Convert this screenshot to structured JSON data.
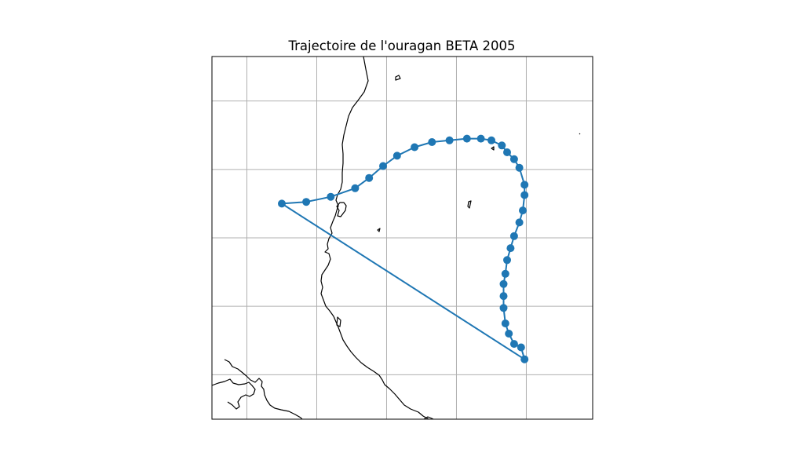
{
  "figure": {
    "title": "Trajectoire de l'ouragan BETA 2005"
  },
  "chart_data": {
    "type": "scatter",
    "title": "Trajectoire de l'ouragan BETA 2005",
    "projection": "lon/lat map with coastlines",
    "lon_range": [
      -86,
      -75.1
    ],
    "lat_range": [
      6.7,
      17.3
    ],
    "grid": true,
    "gridline_lons": [
      -85,
      -83,
      -81,
      -79,
      -77,
      -75
    ],
    "gridline_lats": [
      8,
      10,
      12,
      14,
      16
    ],
    "series": [
      {
        "color": "#1f77b4",
        "marker": "circle",
        "connected": true,
        "lons": [
          -84.0,
          -83.3,
          -82.6,
          -81.9,
          -81.5,
          -81.1,
          -80.7,
          -80.2,
          -79.7,
          -79.2,
          -78.7,
          -78.3,
          -78.0,
          -77.7,
          -77.55,
          -77.35,
          -77.2,
          -77.05,
          -77.05,
          -77.1,
          -77.2,
          -77.35,
          -77.45,
          -77.55,
          -77.6,
          -77.65,
          -77.65,
          -77.65,
          -77.6,
          -77.5,
          -77.35,
          -77.15,
          -77.05
        ],
        "lats": [
          13.0,
          13.05,
          13.2,
          13.45,
          13.75,
          14.1,
          14.4,
          14.65,
          14.8,
          14.85,
          14.9,
          14.9,
          14.85,
          14.7,
          14.5,
          14.3,
          14.05,
          13.55,
          13.25,
          12.8,
          12.45,
          12.05,
          11.7,
          11.35,
          10.95,
          10.65,
          10.3,
          9.95,
          9.5,
          9.2,
          8.9,
          8.8,
          8.45
        ]
      }
    ]
  },
  "map": {
    "coastline_color": "#000000",
    "grid_color": "#b0b0b0"
  }
}
